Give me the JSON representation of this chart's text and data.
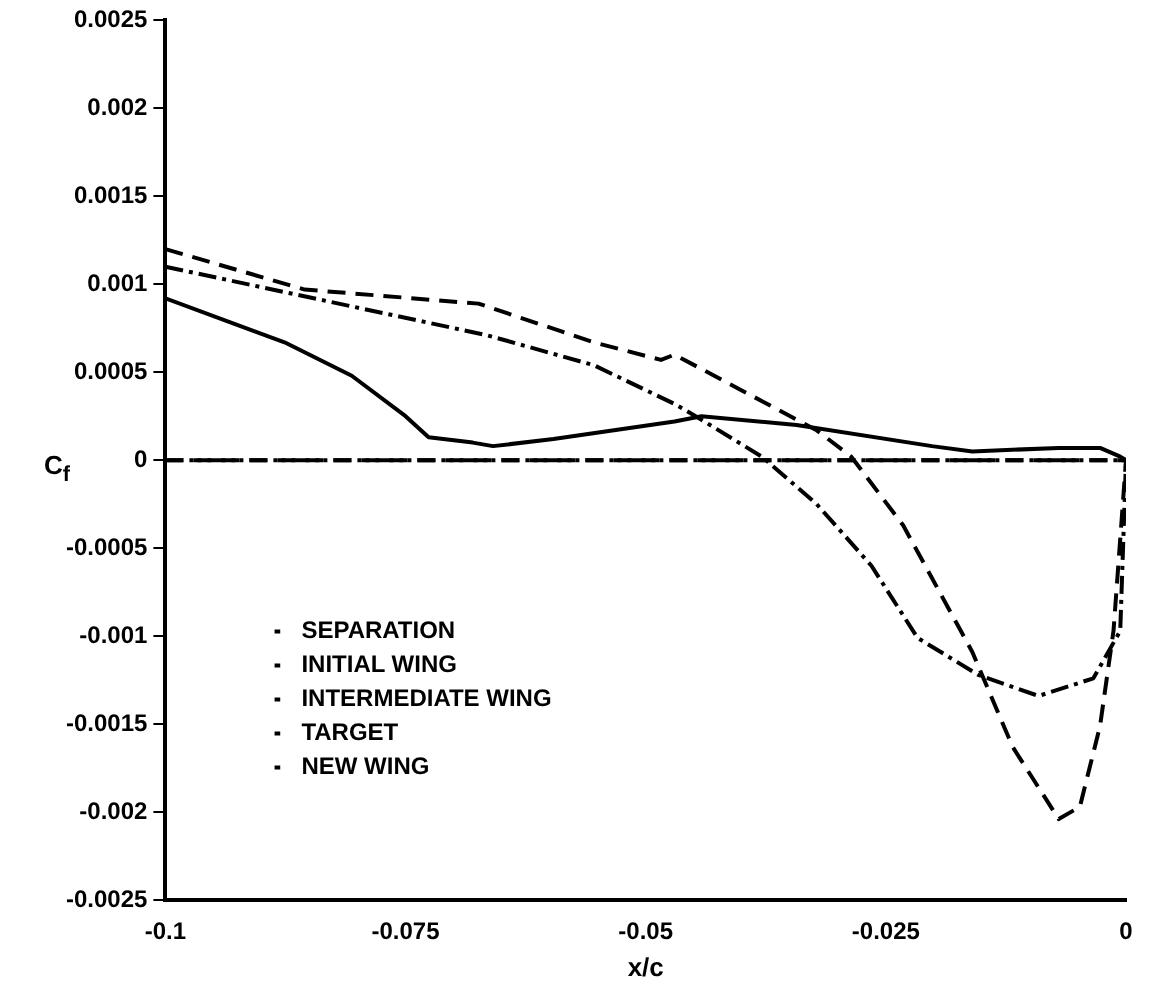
{
  "chart_data": {
    "type": "line",
    "xlabel": "x/c",
    "ylabel": "C$_{f}$",
    "xlim": [
      -0.1,
      0
    ],
    "xticks": [
      -0.1,
      -0.075,
      -0.05,
      -0.025,
      0
    ],
    "ylim": [
      -0.0025,
      0.0025
    ],
    "yticks": [
      -0.0025,
      -0.002,
      -0.0015,
      -0.001,
      -0.0005,
      0,
      0.0005,
      0.001,
      0.0015,
      0.002,
      0.0025
    ],
    "grid": false,
    "legend": "bottom left",
    "marker": "none",
    "series": [
      {
        "name": "SEPARATION",
        "color": "#000000",
        "line_style": "dashed",
        "x": [
          -0.1,
          0
        ],
        "values": [
          0,
          0
        ]
      },
      {
        "name": "INITIAL WING",
        "color": "#000000",
        "line_style": "dashed",
        "x": [
          -0.1,
          -0.0855,
          -0.0674,
          -0.0554,
          -0.0484,
          -0.047,
          -0.0322,
          -0.0286,
          -0.0232,
          -0.0175,
          -0.016,
          -0.0118,
          -0.007,
          -0.0048,
          -0.0027,
          -0.0013,
          0
        ],
        "values": [
          0.0012,
          0.00097,
          0.00089,
          0.00067,
          0.00057,
          0.0006,
          0.00017,
          2e-05,
          -0.00037,
          -0.00094,
          -0.00109,
          -0.00163,
          -0.00204,
          -0.00197,
          -0.00151,
          -0.00097,
          0
        ]
      },
      {
        "name": "INTERMEDIATE WING",
        "color": "#000000",
        "line_style": "dashdot",
        "x": [
          -0.1,
          -0.0665,
          -0.0554,
          -0.047,
          -0.0448,
          -0.0379,
          -0.0322,
          -0.0265,
          -0.0217,
          -0.0154,
          -0.0091,
          -0.0034,
          -0.0006,
          0
        ],
        "values": [
          0.0011,
          0.00071,
          0.00054,
          0.00032,
          0.00025,
          2e-05,
          -0.00025,
          -0.0006,
          -0.00101,
          -0.00122,
          -0.00134,
          -0.00124,
          -0.00097,
          0
        ]
      },
      {
        "name": "TARGET",
        "color": "#000000",
        "line_style": "dashdotdot",
        "x": [
          -0.1,
          0
        ],
        "values": [
          0,
          0
        ]
      },
      {
        "name": "NEW WING",
        "color": "#000000",
        "line_style": "solid",
        "x": [
          -0.1,
          -0.0876,
          -0.0806,
          -0.075,
          -0.0726,
          -0.068,
          -0.0659,
          -0.0596,
          -0.047,
          -0.0442,
          -0.0343,
          -0.0202,
          -0.016,
          -0.007,
          -0.0027,
          -0.0006,
          0
        ],
        "values": [
          0.00092,
          0.00067,
          0.00048,
          0.00025,
          0.00013,
          0.0001,
          8e-05,
          0.00012,
          0.00022,
          0.00025,
          0.0002,
          8e-05,
          5e-05,
          7e-05,
          7e-05,
          2e-05,
          0
        ]
      }
    ]
  }
}
